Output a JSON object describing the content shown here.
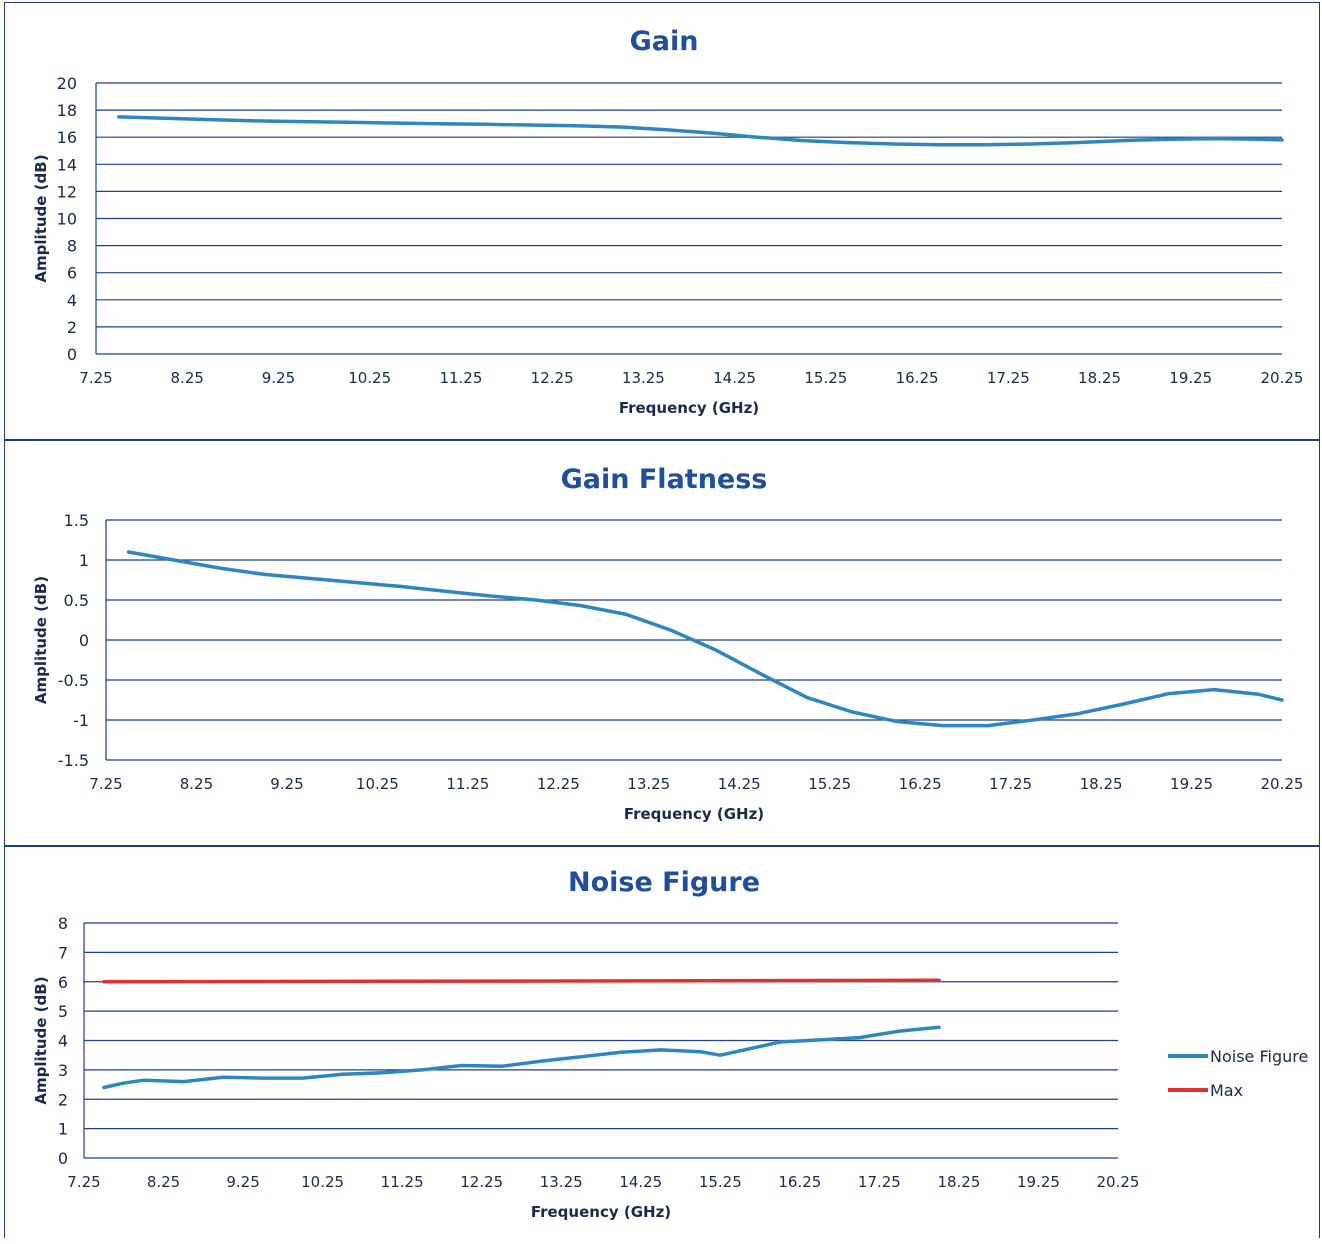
{
  "chart_data": [
    {
      "type": "line",
      "title": "Gain",
      "xlabel": "Frequency (GHz)",
      "ylabel": "Amplitude (dB)",
      "xlim": [
        7.25,
        20.25
      ],
      "ylim": [
        0,
        20
      ],
      "x_ticks": [
        "7.25",
        "8.25",
        "9.25",
        "10.25",
        "11.25",
        "12.25",
        "13.25",
        "14.25",
        "15.25",
        "16.25",
        "17.25",
        "18.25",
        "19.25",
        "20.25"
      ],
      "y_ticks": [
        "0",
        "2",
        "4",
        "6",
        "8",
        "10",
        "12",
        "14",
        "16",
        "18",
        "20"
      ],
      "grid": true,
      "series": [
        {
          "color": "#2e86c1",
          "x": [
            7.5,
            8.0,
            8.5,
            9.0,
            9.5,
            10.0,
            10.5,
            11.0,
            11.5,
            12.0,
            12.5,
            13.0,
            13.5,
            14.0,
            14.5,
            15.0,
            15.5,
            16.0,
            16.5,
            17.0,
            17.5,
            18.0,
            18.5,
            19.0,
            19.5,
            20.0,
            20.25
          ],
          "y": [
            17.5,
            17.4,
            17.3,
            17.2,
            17.15,
            17.1,
            17.05,
            17.0,
            16.95,
            16.9,
            16.85,
            16.75,
            16.55,
            16.3,
            16.0,
            15.75,
            15.6,
            15.5,
            15.45,
            15.45,
            15.5,
            15.6,
            15.75,
            15.85,
            15.9,
            15.85,
            15.8
          ]
        }
      ]
    },
    {
      "type": "line",
      "title": "Gain Flatness",
      "xlabel": "Frequency (GHz)",
      "ylabel": "Amplitude (dB)",
      "xlim": [
        7.25,
        20.25
      ],
      "ylim": [
        -1.5,
        1.5
      ],
      "x_ticks": [
        "7.25",
        "8.25",
        "9.25",
        "10.25",
        "11.25",
        "12.25",
        "13.25",
        "14.25",
        "15.25",
        "16.25",
        "17.25",
        "18.25",
        "19.25",
        "20.25"
      ],
      "y_ticks": [
        "-1.5",
        "-1",
        "-0.5",
        "0",
        "0.5",
        "1",
        "1.5"
      ],
      "grid": true,
      "series": [
        {
          "color": "#2e86c1",
          "x": [
            7.5,
            8.0,
            8.5,
            9.0,
            9.5,
            10.0,
            10.5,
            11.0,
            11.5,
            12.0,
            12.5,
            13.0,
            13.5,
            14.0,
            14.5,
            15.0,
            15.5,
            16.0,
            16.5,
            17.0,
            17.5,
            18.0,
            18.5,
            19.0,
            19.5,
            20.0,
            20.25
          ],
          "y": [
            1.1,
            1.0,
            0.9,
            0.82,
            0.77,
            0.72,
            0.67,
            0.61,
            0.55,
            0.5,
            0.43,
            0.32,
            0.12,
            -0.13,
            -0.43,
            -0.72,
            -0.9,
            -1.02,
            -1.07,
            -1.07,
            -1.0,
            -0.92,
            -0.8,
            -0.67,
            -0.62,
            -0.68,
            -0.75
          ]
        }
      ]
    },
    {
      "type": "line",
      "title": "Noise Figure",
      "xlabel": "Frequency (GHz)",
      "ylabel": "Amplitude (dB)",
      "xlim": [
        7.25,
        20.25
      ],
      "ylim": [
        0,
        8
      ],
      "x_ticks": [
        "7.25",
        "8.25",
        "9.25",
        "10.25",
        "11.25",
        "12.25",
        "13.25",
        "14.25",
        "15.25",
        "16.25",
        "17.25",
        "18.25",
        "19.25",
        "20.25"
      ],
      "y_ticks": [
        "0",
        "1",
        "2",
        "3",
        "4",
        "5",
        "6",
        "7",
        "8"
      ],
      "grid": true,
      "legend": "right",
      "series": [
        {
          "name": "Noise Figure",
          "color": "#2e86c1",
          "x": [
            7.5,
            7.75,
            8.0,
            8.5,
            9.0,
            9.5,
            10.0,
            10.5,
            11.0,
            11.5,
            12.0,
            12.5,
            13.0,
            13.5,
            14.0,
            14.5,
            15.0,
            15.25,
            15.5,
            16.0,
            16.5,
            17.0,
            17.5,
            18.0
          ],
          "y": [
            2.4,
            2.55,
            2.65,
            2.6,
            2.75,
            2.72,
            2.72,
            2.85,
            2.9,
            3.0,
            3.15,
            3.12,
            3.3,
            3.45,
            3.6,
            3.68,
            3.62,
            3.5,
            3.65,
            3.95,
            4.02,
            4.1,
            4.32,
            4.45
          ]
        },
        {
          "name": "Max",
          "color": "#e0322c",
          "x": [
            7.5,
            18.0
          ],
          "y": [
            6.0,
            6.05
          ]
        }
      ]
    }
  ]
}
